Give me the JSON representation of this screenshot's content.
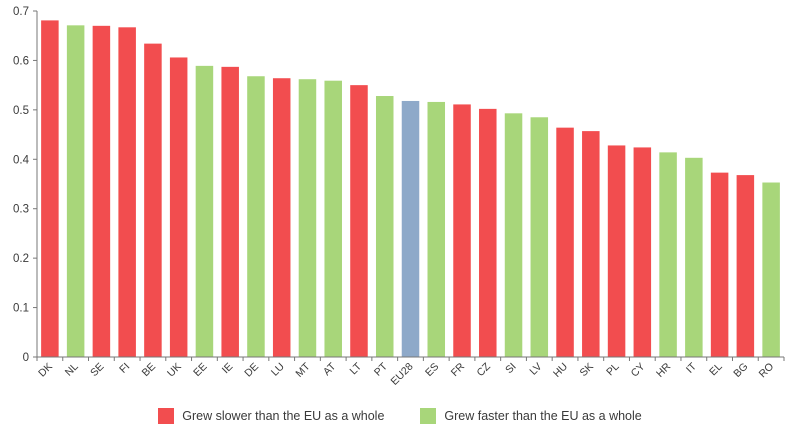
{
  "chart_data": {
    "type": "bar",
    "title": "",
    "xlabel": "",
    "ylabel": "",
    "ylim": [
      0,
      0.7
    ],
    "yticks": [
      "0",
      "0.1",
      "0.2",
      "0.3",
      "0.4",
      "0.5",
      "0.6",
      "0.7"
    ],
    "yticks_values": [
      0,
      0.1,
      0.2,
      0.3,
      0.4,
      0.5,
      0.6,
      0.7
    ],
    "grid": false,
    "legend_position": "bottom",
    "categories": [
      "DK",
      "NL",
      "SE",
      "FI",
      "BE",
      "UK",
      "EE",
      "IE",
      "DE",
      "LU",
      "MT",
      "AT",
      "LT",
      "PT",
      "EU28",
      "ES",
      "FR",
      "CZ",
      "SI",
      "LV",
      "HU",
      "SK",
      "PL",
      "CY",
      "HR",
      "IT",
      "EL",
      "BG",
      "RO"
    ],
    "values": [
      0.681,
      0.671,
      0.67,
      0.667,
      0.634,
      0.606,
      0.589,
      0.587,
      0.568,
      0.564,
      0.562,
      0.559,
      0.55,
      0.528,
      0.518,
      0.516,
      0.511,
      0.502,
      0.493,
      0.485,
      0.464,
      0.457,
      0.428,
      0.424,
      0.414,
      0.403,
      0.373,
      0.368,
      0.353
    ],
    "bar_groups": [
      "slower",
      "faster",
      "slower",
      "slower",
      "slower",
      "slower",
      "faster",
      "slower",
      "faster",
      "slower",
      "faster",
      "faster",
      "slower",
      "faster",
      "eu",
      "faster",
      "slower",
      "slower",
      "faster",
      "faster",
      "slower",
      "slower",
      "slower",
      "slower",
      "faster",
      "faster",
      "slower",
      "slower",
      "faster"
    ],
    "colors": {
      "slower": "#f24d4f",
      "faster": "#a8d67a",
      "eu": "#8ea9c9",
      "axis": "#777777"
    },
    "legend": [
      {
        "key": "slower",
        "label": "Grew slower than the EU as a whole"
      },
      {
        "key": "faster",
        "label": "Grew faster than the EU as a whole"
      }
    ]
  }
}
